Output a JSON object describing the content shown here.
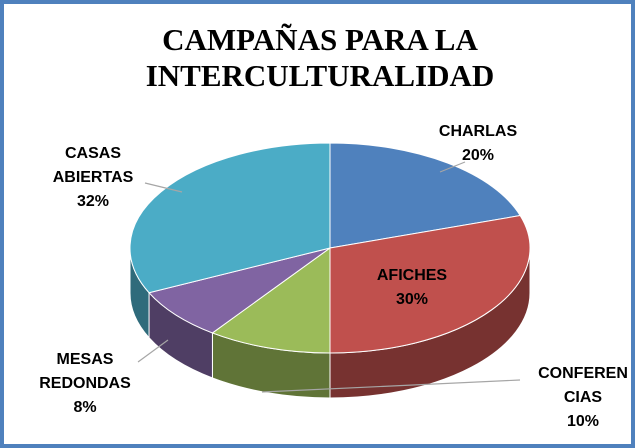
{
  "chart_data": {
    "type": "pie",
    "title": "CAMPAÑAS PARA LA INTERCULTURALIDAD",
    "categories": [
      "CHARLAS",
      "AFICHES",
      "CONFERENCIAS",
      "MESAS REDONDAS",
      "CASAS ABIERTAS"
    ],
    "values": [
      20,
      30,
      10,
      8,
      32
    ],
    "value_labels": [
      "20%",
      "30%",
      "10%",
      "8%",
      "32%"
    ],
    "colors": [
      "#4f81bd",
      "#c0504d",
      "#9bbb59",
      "#8064a2",
      "#4bacc6"
    ]
  }
}
